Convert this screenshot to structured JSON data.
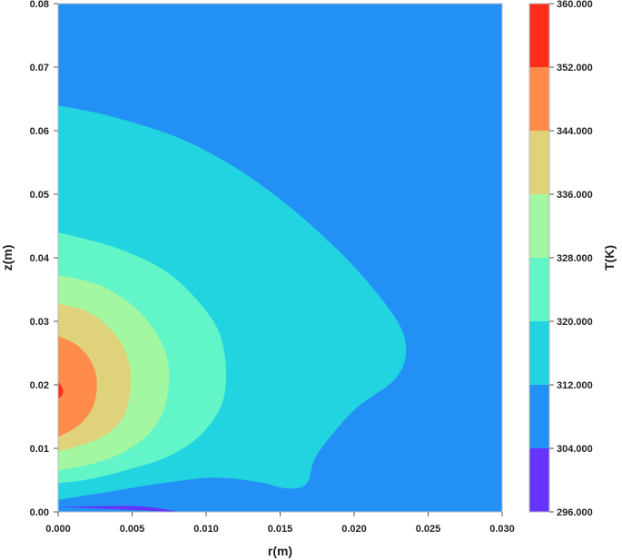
{
  "chart_data": {
    "type": "contour",
    "xlabel": "r(m)",
    "ylabel": "z(m)",
    "xlim": [
      0,
      0.03
    ],
    "ylim": [
      0,
      0.08
    ],
    "x_ticks": [
      "0.000",
      "0.005",
      "0.010",
      "0.015",
      "0.020",
      "0.025",
      "0.030"
    ],
    "y_ticks": [
      "0.00",
      "0.01",
      "0.02",
      "0.03",
      "0.04",
      "0.05",
      "0.06",
      "0.07",
      "0.08"
    ],
    "colorbar": {
      "label": "T(K)",
      "levels": [
        "296.000",
        "304.000",
        "312.000",
        "320.000",
        "328.000",
        "336.000",
        "344.000",
        "352.000",
        "360.000"
      ],
      "colors": [
        "#6633ff",
        "#2290f5",
        "#22d3e0",
        "#62f5c8",
        "#a4f7a1",
        "#e0d27a",
        "#ff8c4a",
        "#ff2d1a"
      ]
    },
    "contours": [
      {
        "level": 304,
        "points": [
          [
            0,
            0.0008
          ],
          [
            0.003,
            0.0009
          ],
          [
            0.0055,
            0.0009
          ],
          [
            0.0075,
            0.0003
          ],
          [
            0.008,
            0
          ]
        ]
      },
      {
        "level": 312,
        "points": [
          [
            0,
            0.064
          ],
          [
            0.004,
            0.062
          ],
          [
            0.009,
            0.058
          ],
          [
            0.014,
            0.051
          ],
          [
            0.019,
            0.041
          ],
          [
            0.0225,
            0.0315
          ],
          [
            0.0235,
            0.026
          ],
          [
            0.0228,
            0.021
          ],
          [
            0.02,
            0.016
          ],
          [
            0.0175,
            0.009
          ],
          [
            0.0168,
            0.0045
          ],
          [
            0.0155,
            0.0037
          ],
          [
            0.0135,
            0.0047
          ],
          [
            0.0105,
            0.0054
          ],
          [
            0.007,
            0.0045
          ],
          [
            0.0035,
            0.0032
          ],
          [
            0,
            0.0019
          ]
        ]
      },
      {
        "level": 320,
        "points": [
          [
            0,
            0.044
          ],
          [
            0.004,
            0.0415
          ],
          [
            0.0075,
            0.0375
          ],
          [
            0.0102,
            0.031
          ],
          [
            0.0112,
            0.0255
          ],
          [
            0.0112,
            0.018
          ],
          [
            0.0098,
            0.0125
          ],
          [
            0.0075,
            0.0088
          ],
          [
            0.0045,
            0.0065
          ],
          [
            0.002,
            0.0051
          ],
          [
            0,
            0.0045
          ]
        ]
      },
      {
        "level": 328,
        "points": [
          [
            0,
            0.0373
          ],
          [
            0.003,
            0.0355
          ],
          [
            0.0055,
            0.0315
          ],
          [
            0.007,
            0.0265
          ],
          [
            0.0075,
            0.022
          ],
          [
            0.0072,
            0.0165
          ],
          [
            0.0062,
            0.0125
          ],
          [
            0.0045,
            0.0095
          ],
          [
            0.0025,
            0.0077
          ],
          [
            0,
            0.0065
          ]
        ]
      },
      {
        "level": 336,
        "points": [
          [
            0,
            0.0328
          ],
          [
            0.002,
            0.0315
          ],
          [
            0.0035,
            0.0288
          ],
          [
            0.0046,
            0.025
          ],
          [
            0.0049,
            0.0205
          ],
          [
            0.0046,
            0.016
          ],
          [
            0.0037,
            0.013
          ],
          [
            0.0022,
            0.011
          ],
          [
            0,
            0.0095
          ]
        ]
      },
      {
        "level": 344,
        "points": [
          [
            0,
            0.0277
          ],
          [
            0.0013,
            0.0262
          ],
          [
            0.0022,
            0.0238
          ],
          [
            0.0026,
            0.021
          ],
          [
            0.0025,
            0.0175
          ],
          [
            0.0019,
            0.0148
          ],
          [
            0.001,
            0.013
          ],
          [
            0,
            0.0118
          ]
        ]
      },
      {
        "level": 352,
        "points": [
          [
            0,
            0.0205
          ],
          [
            0.00025,
            0.0197
          ],
          [
            0.00035,
            0.019
          ],
          [
            0.00025,
            0.0183
          ],
          [
            0,
            0.0178
          ]
        ]
      }
    ]
  }
}
